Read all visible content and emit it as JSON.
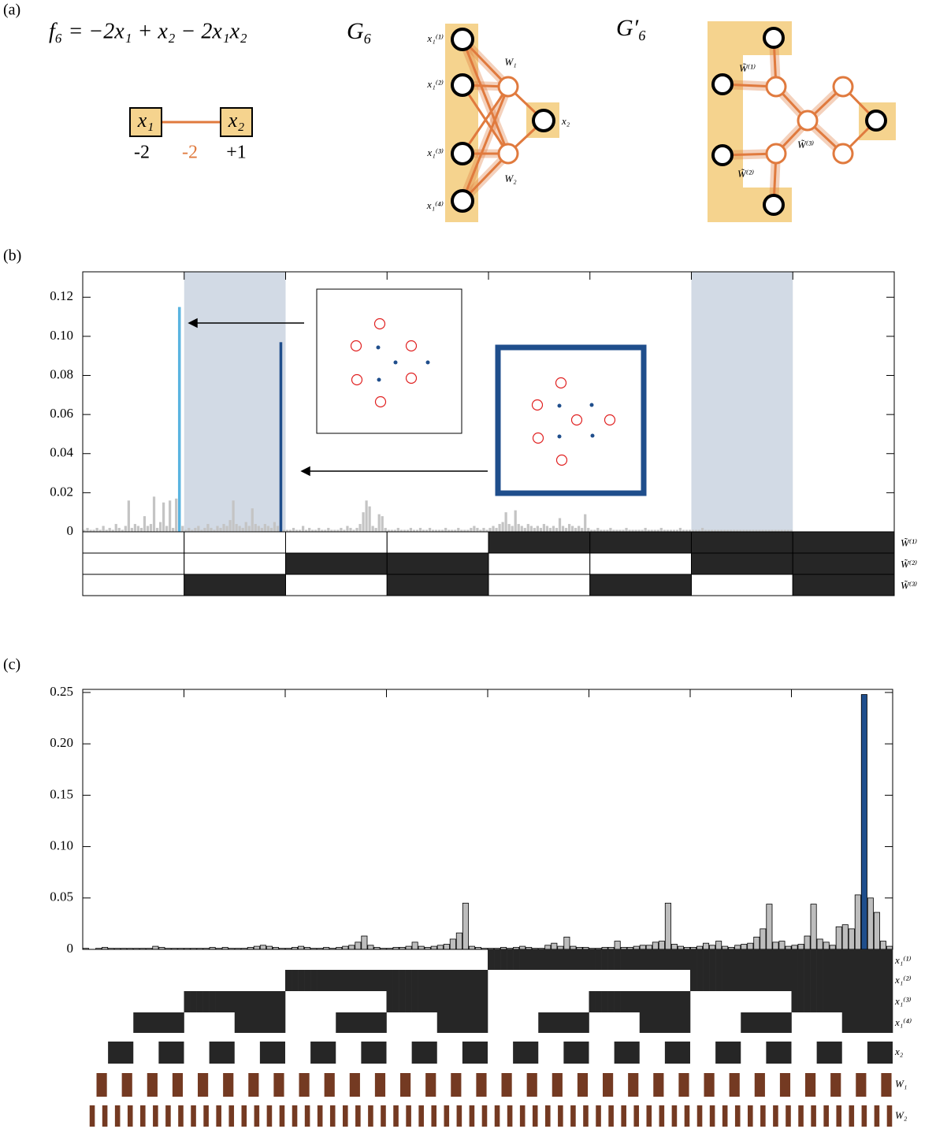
{
  "panel_a": {
    "label": "(a)",
    "equation": "f₆ = −2x₁ + x₂ − 2x₁x₂",
    "graph_title": "G₆",
    "transformed_title": "G′₆",
    "factor_graph": {
      "nodes": [
        "x₁",
        "x₂"
      ],
      "weights": [
        "-2",
        "-2",
        "+1"
      ]
    },
    "g6_labels": [
      "x₁⁽¹⁾",
      "x₁⁽²⁾",
      "x₁⁽³⁾",
      "x₁⁽⁴⁾",
      "W₁",
      "W₂",
      "x₂"
    ],
    "g6_prime_labels": [
      "W̃⁽¹⁾",
      "W̃⁽²⁾",
      "W̃⁽³⁾"
    ]
  },
  "chart_data": [
    {
      "type": "bar",
      "panel_label": "(b)",
      "color": "#c4c4c4",
      "highlight_colors": {
        "30": "#5ab4e0",
        "62": "#1f4e8c"
      },
      "shaded_columns": [
        1,
        6
      ],
      "shade_color": "#d2dae5",
      "ylim": [
        0,
        0.133
      ],
      "yticks": [
        0,
        0.02,
        0.04,
        0.06,
        0.08,
        {
          "value": 0.1,
          "label": "0.10"
        },
        0.12
      ],
      "row_labels": [
        "W̃⁽¹⁾",
        "W̃⁽²⁾",
        "W̃⁽³⁾"
      ],
      "row_color": "#262626",
      "values": [
        0.001,
        0.002,
        0.001,
        0.001,
        0.002,
        0.001,
        0.003,
        0.001,
        0.002,
        0.001,
        0.004,
        0.002,
        0.001,
        0.003,
        0.016,
        0.002,
        0.004,
        0.003,
        0.002,
        0.008,
        0.003,
        0.004,
        0.018,
        0.002,
        0.005,
        0.015,
        0.003,
        0.016,
        0.002,
        0.017,
        0.115,
        0.003,
        0.001,
        0.002,
        0.001,
        0.002,
        0.003,
        0.001,
        0.002,
        0.004,
        0.002,
        0.001,
        0.003,
        0.002,
        0.004,
        0.003,
        0.006,
        0.016,
        0.004,
        0.003,
        0.002,
        0.005,
        0.003,
        0.012,
        0.004,
        0.003,
        0.002,
        0.004,
        0.003,
        0.002,
        0.005,
        0.003,
        0.097,
        0.001,
        0.001,
        0.001,
        0.002,
        0.001,
        0.001,
        0.003,
        0.001,
        0.002,
        0.001,
        0.001,
        0.002,
        0.001,
        0.001,
        0.002,
        0.001,
        0.001,
        0.001,
        0.002,
        0.001,
        0.003,
        0.002,
        0.001,
        0.002,
        0.004,
        0.01,
        0.016,
        0.013,
        0.003,
        0.002,
        0.009,
        0.008,
        0.002,
        0.001,
        0.001,
        0.001,
        0.002,
        0.001,
        0.001,
        0.001,
        0.002,
        0.001,
        0.001,
        0.002,
        0.001,
        0.001,
        0.002,
        0.001,
        0.001,
        0.001,
        0.001,
        0.002,
        0.001,
        0.001,
        0.001,
        0.002,
        0.001,
        0.001,
        0.001,
        0.002,
        0.003,
        0.002,
        0.001,
        0.002,
        0.001,
        0.002,
        0.003,
        0.002,
        0.004,
        0.005,
        0.01,
        0.004,
        0.003,
        0.011,
        0.004,
        0.003,
        0.002,
        0.004,
        0.003,
        0.002,
        0.003,
        0.002,
        0.004,
        0.003,
        0.002,
        0.003,
        0.002,
        0.007,
        0.003,
        0.002,
        0.004,
        0.003,
        0.002,
        0.003,
        0.002,
        0.009,
        0.002,
        0.001,
        0.001,
        0.002,
        0.001,
        0.001,
        0.001,
        0.002,
        0.001,
        0.001,
        0.001,
        0.001,
        0.002,
        0.001,
        0.001,
        0.001,
        0.001,
        0.001,
        0.002,
        0.001,
        0.001,
        0.001,
        0.001,
        0.002,
        0.001,
        0.001,
        0.001,
        0.001,
        0.001,
        0.002,
        0.001,
        0.001,
        0.001,
        0.001,
        0.001,
        0.001,
        0.002,
        0.001,
        0.001,
        0.001,
        0.001,
        0.001,
        0.001,
        0.001,
        0.001,
        0.001,
        0.001,
        0.001,
        0.001,
        0.001,
        0.001,
        0.001,
        0.001,
        0.001,
        0.001,
        0.001,
        0.001,
        0.001,
        0.001,
        0.001,
        0.001,
        0.001,
        0.001,
        0.001,
        0.001,
        0,
        0,
        0,
        0,
        0,
        0,
        0,
        0,
        0,
        0,
        0,
        0,
        0,
        0,
        0,
        0,
        0,
        0,
        0,
        0,
        0,
        0,
        0,
        0,
        0,
        0,
        0,
        0,
        0,
        0,
        0,
        0
      ]
    },
    {
      "type": "bar",
      "panel_label": "(c)",
      "color": "#bdbdbd",
      "edge_color": "#000000",
      "highlight_colors": {
        "123": "#1f4e8c"
      },
      "ylim": [
        0,
        0.253
      ],
      "yticks": [
        0,
        0.05,
        {
          "value": 0.1,
          "label": "0.10"
        },
        0.15,
        {
          "value": 0.2,
          "label": "0.20"
        },
        0.25
      ],
      "row_labels": [
        "x₁⁽¹⁾",
        "x₁⁽²⁾",
        "x₁⁽³⁾",
        "x₁⁽⁴⁾",
        "x₂",
        "W₁",
        "W₂"
      ],
      "row_colors": [
        "#262626",
        "#262626",
        "#262626",
        "#262626",
        "#262626",
        "#743a22",
        "#743a22"
      ],
      "values": [
        0.001,
        0,
        0.001,
        0.002,
        0.001,
        0.001,
        0.001,
        0.001,
        0.001,
        0.001,
        0.001,
        0.003,
        0.002,
        0.001,
        0.001,
        0.001,
        0.001,
        0.001,
        0.001,
        0.001,
        0.002,
        0.001,
        0.002,
        0.001,
        0.001,
        0.001,
        0.002,
        0.003,
        0.004,
        0.003,
        0.002,
        0.001,
        0.001,
        0.002,
        0.003,
        0.002,
        0.001,
        0.001,
        0.002,
        0.001,
        0.002,
        0.003,
        0.004,
        0.007,
        0.013,
        0.004,
        0.002,
        0.001,
        0.001,
        0.002,
        0.002,
        0.003,
        0.007,
        0.003,
        0.002,
        0.003,
        0.004,
        0.005,
        0.01,
        0.016,
        0.045,
        0.003,
        0.002,
        0.001,
        0.001,
        0.001,
        0.002,
        0.001,
        0.002,
        0.003,
        0.002,
        0.001,
        0.001,
        0.004,
        0.006,
        0.003,
        0.012,
        0.003,
        0.002,
        0.002,
        0.001,
        0.001,
        0.002,
        0.002,
        0.008,
        0.002,
        0.002,
        0.003,
        0.004,
        0.004,
        0.007,
        0.008,
        0.045,
        0.005,
        0.003,
        0.002,
        0.002,
        0.003,
        0.006,
        0.004,
        0.008,
        0.003,
        0.002,
        0.004,
        0.005,
        0.006,
        0.012,
        0.02,
        0.044,
        0.007,
        0.008,
        0.003,
        0.004,
        0.005,
        0.013,
        0.044,
        0.01,
        0.007,
        0.004,
        0.022,
        0.024,
        0.02,
        0.053,
        0.248,
        0.05,
        0.036,
        0.008,
        0.003
      ]
    }
  ]
}
